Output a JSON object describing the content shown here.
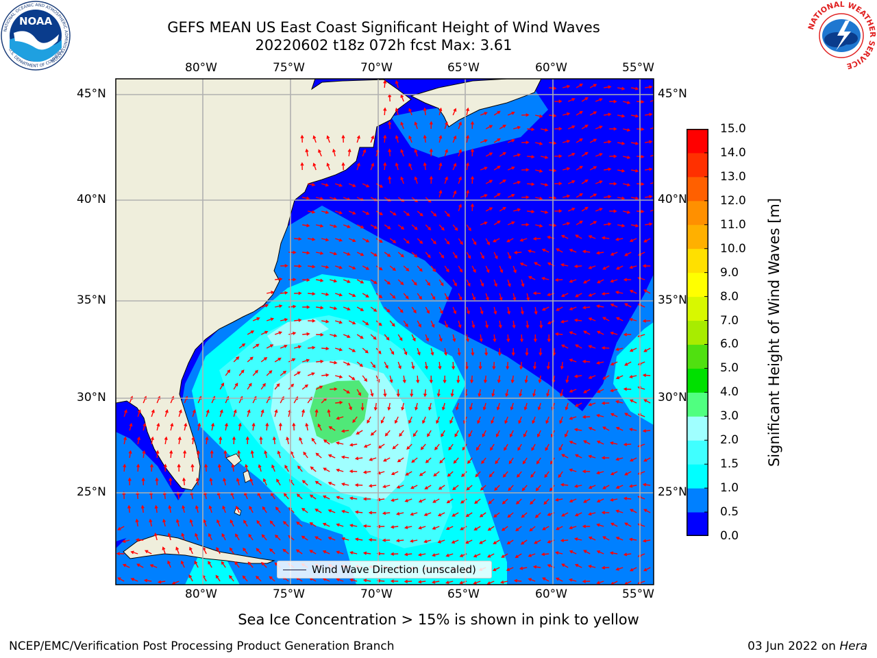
{
  "header": {
    "title_line1": "GEFS MEAN US East Coast Significant Height of Wind Waves",
    "title_line2": "20220602 t18z 072h fcst   Max: 3.61"
  },
  "map": {
    "lon_ticks": [
      "80°W",
      "75°W",
      "70°W",
      "65°W",
      "60°W",
      "55°W"
    ],
    "lat_ticks": [
      "45°N",
      "40°N",
      "35°N",
      "30°N",
      "25°N"
    ],
    "legend_label": "Wind Wave Direction (unscaled)",
    "arrow_color": "#ff0000",
    "land_color": "#efeedc",
    "gridline_color": "#b0b0b0"
  },
  "colorbar": {
    "label": "Significant Height of Wind Waves [m]",
    "ticks": [
      "0.0",
      "0.5",
      "1.0",
      "1.5",
      "2.0",
      "3.0",
      "4.0",
      "5.0",
      "6.0",
      "7.0",
      "8.0",
      "9.0",
      "10.0",
      "11.0",
      "12.0",
      "13.0",
      "14.0",
      "15.0"
    ],
    "colors": [
      "#0000ff",
      "#0080ff",
      "#00ffff",
      "#40ffff",
      "#a0ffff",
      "#50ff80",
      "#00e000",
      "#50e010",
      "#a8ec00",
      "#d8f800",
      "#ffff00",
      "#ffe000",
      "#ffb000",
      "#ff9000",
      "#ff6000",
      "#ff3000",
      "#ff0000"
    ]
  },
  "footer": {
    "sea_ice_note": "Sea Ice Concentration > 15% is shown in pink to yellow",
    "branch": "NCEP/EMC/Verification Post Processing Product Generation Branch",
    "date": "03 Jun 2022 on",
    "machine": "Hera"
  },
  "logos": {
    "noaa_text": "NOAA",
    "noaa_ring_text": "NATIONAL OCEANIC AND ATMOSPHERIC ADMINISTRATION",
    "noaa_ring_bottom": "U.S. DEPARTMENT OF COMMERCE",
    "nws_ring_text": "NATIONAL WEATHER SERVICE"
  }
}
